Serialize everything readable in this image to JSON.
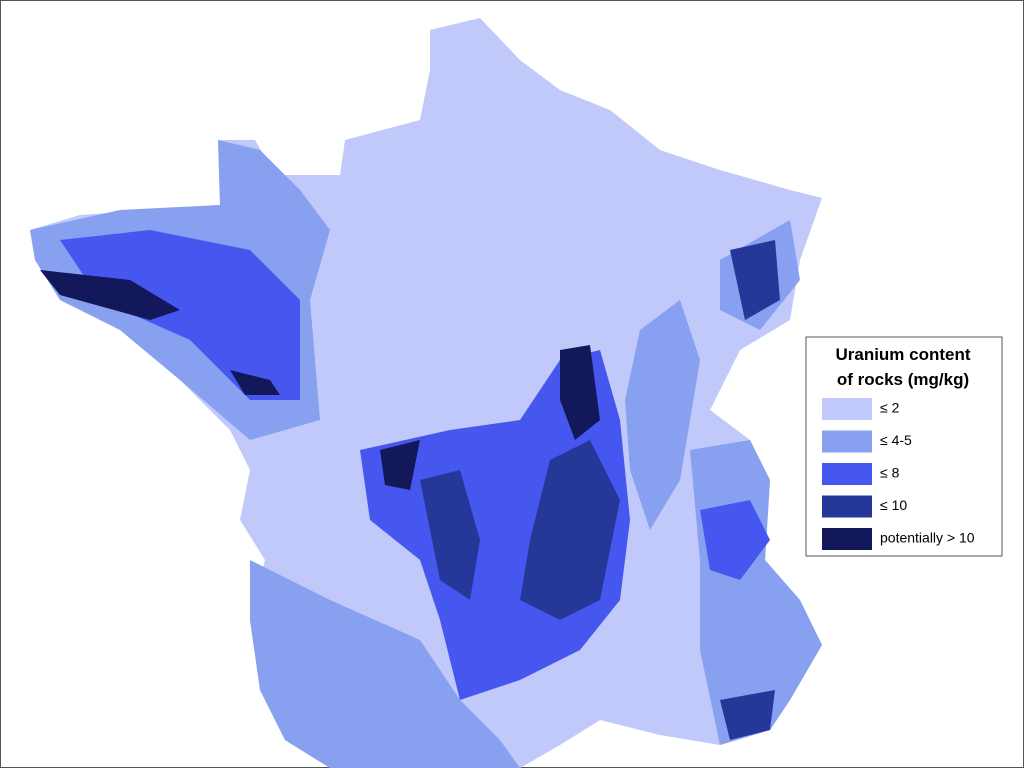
{
  "legend": {
    "title": [
      "Uranium content",
      "of rocks (mg/kg)"
    ],
    "items": [
      {
        "label": "≤ 2",
        "color": "#c0c9f9"
      },
      {
        "label": "≤ 4-5",
        "color": "#87a0f0"
      },
      {
        "label": "≤ 8",
        "color": "#4657ef"
      },
      {
        "label": "≤ 10",
        "color": "#26379a"
      },
      {
        "label": "potentially > 10",
        "color": "#12185a"
      }
    ]
  }
}
